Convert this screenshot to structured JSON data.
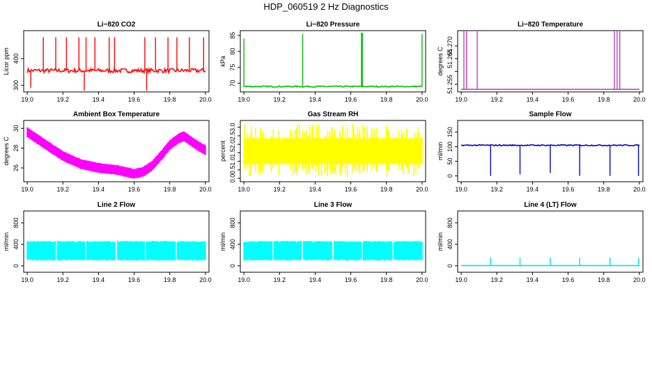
{
  "title": "HDP_060519  2 Hz Diagnostics",
  "chart_data": [
    {
      "id": "co2",
      "type": "line",
      "title": "Li−820 CO2",
      "ylabel": "Licor ppm",
      "color": "#ff0000",
      "xlim": [
        18.98,
        20.02
      ],
      "ylim": [
        275,
        505
      ],
      "xticks": [
        19.0,
        19.2,
        19.4,
        19.6,
        19.8,
        20.0
      ],
      "yticks": [
        300,
        400
      ],
      "x": [
        19.0,
        20.0
      ],
      "baseline": 355,
      "noise": 8,
      "spikes": [
        {
          "x": 19.02,
          "y": 290
        },
        {
          "x": 19.09,
          "y": 480
        },
        {
          "x": 19.16,
          "y": 480
        },
        {
          "x": 19.22,
          "y": 480
        },
        {
          "x": 19.29,
          "y": 480
        },
        {
          "x": 19.32,
          "y": 280
        },
        {
          "x": 19.33,
          "y": 480
        },
        {
          "x": 19.38,
          "y": 480
        },
        {
          "x": 19.46,
          "y": 480
        },
        {
          "x": 19.49,
          "y": 480
        },
        {
          "x": 19.66,
          "y": 480
        },
        {
          "x": 19.67,
          "y": 280
        },
        {
          "x": 19.72,
          "y": 480
        },
        {
          "x": 19.79,
          "y": 480
        },
        {
          "x": 19.84,
          "y": 480
        },
        {
          "x": 19.91,
          "y": 480
        },
        {
          "x": 19.99,
          "y": 480
        }
      ]
    },
    {
      "id": "pressure",
      "type": "line",
      "title": "Li−820 Pressure",
      "ylabel": "kPa",
      "color": "#00c000",
      "xlim": [
        18.98,
        20.02
      ],
      "ylim": [
        67.3,
        86.5
      ],
      "xticks": [
        19.0,
        19.2,
        19.4,
        19.6,
        19.8,
        20.0
      ],
      "yticks": [
        70,
        75,
        80,
        85
      ],
      "x": [
        19.0,
        20.0
      ],
      "baseline": 69,
      "noise": 0.2,
      "spikes": [
        {
          "x": 19.0,
          "y": 84
        },
        {
          "x": 19.33,
          "y": 85.5
        },
        {
          "x": 19.66,
          "y": 85.8
        },
        {
          "x": 19.665,
          "y": 85.8
        },
        {
          "x": 20.0,
          "y": 85.5
        }
      ]
    },
    {
      "id": "licor-temp",
      "type": "line",
      "title": "Li−820 Temperature",
      "ylabel": "degrees C",
      "color": "#c040c0",
      "xlim": [
        18.98,
        20.02
      ],
      "ylim": [
        51.252,
        51.276
      ],
      "xticks": [
        19.0,
        19.2,
        19.4,
        19.6,
        19.8,
        20.0
      ],
      "yticks": [
        51.255,
        51.26,
        51.265,
        51.27
      ],
      "ytick_labels": [
        "51.255",
        "",
        "51.265",
        "51.270"
      ],
      "x": [
        19.0,
        20.0
      ],
      "baseline": 51.253,
      "noise": 0,
      "spikes": [
        {
          "x": 19.015,
          "y": 51.276
        },
        {
          "x": 19.03,
          "y": 51.276
        },
        {
          "x": 19.09,
          "y": 51.276
        },
        {
          "x": 19.86,
          "y": 51.276
        },
        {
          "x": 19.875,
          "y": 51.276
        },
        {
          "x": 19.89,
          "y": 51.276
        }
      ]
    },
    {
      "id": "box-temp",
      "type": "band",
      "title": "Ambient Box Temperature",
      "ylabel": "degrees C",
      "color": "#ff00ff",
      "xlim": [
        18.98,
        20.02
      ],
      "ylim": [
        24.6,
        30.8
      ],
      "xticks": [
        19.0,
        19.2,
        19.4,
        19.6,
        19.8,
        20.0
      ],
      "yticks": [
        26,
        28,
        30
      ],
      "x": [
        19.0,
        19.1,
        19.2,
        19.3,
        19.4,
        19.5,
        19.55,
        19.6,
        19.65,
        19.7,
        19.75,
        19.8,
        19.85,
        19.88,
        19.92,
        19.96,
        20.0
      ],
      "values": [
        29.6,
        28.4,
        27.2,
        26.4,
        26.0,
        25.8,
        25.6,
        25.4,
        25.6,
        26.2,
        27.2,
        28.3,
        29.0,
        29.2,
        28.7,
        28.2,
        27.8
      ],
      "band": 0.45
    },
    {
      "id": "rh",
      "type": "band",
      "title": "Gas Stream RH",
      "ylabel": "percent",
      "color": "#ffff00",
      "xlim": [
        18.98,
        20.02
      ],
      "ylim": [
        -0.2,
        3.4
      ],
      "xticks": [
        19.0,
        19.2,
        19.4,
        19.6,
        19.8,
        20.0
      ],
      "yticks": [
        0.0,
        0.5,
        1.0,
        1.5,
        2.0,
        2.5,
        3.0
      ],
      "ytick_labels": [
        "0.0",
        "0.5",
        "1.0",
        "1.5",
        "2.0",
        "2.5",
        "3.0"
      ],
      "x": [
        19.0,
        20.0
      ],
      "values": [
        1.6,
        1.6
      ],
      "band": 0.7,
      "spread": [
        0.1,
        3.2
      ]
    },
    {
      "id": "sample-flow",
      "type": "line",
      "title": "Sample Flow",
      "ylabel": "ml/min",
      "color": "#0000cc",
      "xlim": [
        18.98,
        20.02
      ],
      "ylim": [
        -20,
        190
      ],
      "xticks": [
        19.0,
        19.2,
        19.4,
        19.6,
        19.8,
        20.0
      ],
      "yticks": [
        0,
        50,
        100,
        150
      ],
      "x": [
        19.0,
        20.0
      ],
      "baseline": 105,
      "noise": 2,
      "spikes": [
        {
          "x": 19.165,
          "y": 0
        },
        {
          "x": 19.33,
          "y": 5
        },
        {
          "x": 19.5,
          "y": 10
        },
        {
          "x": 19.665,
          "y": 0
        },
        {
          "x": 19.835,
          "y": 0
        },
        {
          "x": 19.995,
          "y": 0
        }
      ]
    },
    {
      "id": "line2",
      "type": "band",
      "title": "Line 2 Flow",
      "ylabel": "ml/min",
      "color": "#00ffff",
      "xlim": [
        18.98,
        20.02
      ],
      "ylim": [
        -120,
        1020
      ],
      "xticks": [
        19.0,
        19.2,
        19.4,
        19.6,
        19.8,
        20.0
      ],
      "yticks": [
        0,
        400,
        800
      ],
      "x": [
        19.0,
        20.0
      ],
      "values": [
        280,
        280
      ],
      "band": 160,
      "gaps": [
        19.165,
        19.33,
        19.5,
        19.665,
        19.835
      ]
    },
    {
      "id": "line3",
      "type": "band",
      "title": "Line 3 Flow",
      "ylabel": "ml/min",
      "color": "#00ffff",
      "xlim": [
        18.98,
        20.02
      ],
      "ylim": [
        -120,
        1020
      ],
      "xticks": [
        19.0,
        19.2,
        19.4,
        19.6,
        19.8,
        20.0
      ],
      "yticks": [
        0,
        400,
        800
      ],
      "x": [
        19.0,
        20.0
      ],
      "values": [
        280,
        280
      ],
      "band": 160,
      "gaps": [
        19.165,
        19.33,
        19.5,
        19.665,
        19.835
      ]
    },
    {
      "id": "line4",
      "type": "line",
      "title": "Line 4 (LT) Flow",
      "ylabel": "ml/min",
      "color": "#00e0e0",
      "xlim": [
        18.98,
        20.02
      ],
      "ylim": [
        -120,
        1020
      ],
      "xticks": [
        19.0,
        19.2,
        19.4,
        19.6,
        19.8,
        20.0
      ],
      "yticks": [
        0,
        400,
        800
      ],
      "x": [
        19.0,
        20.0
      ],
      "baseline": 5,
      "noise": 0,
      "spikes": [
        {
          "x": 19.165,
          "y": 150
        },
        {
          "x": 19.33,
          "y": 150
        },
        {
          "x": 19.5,
          "y": 150
        },
        {
          "x": 19.665,
          "y": 150
        },
        {
          "x": 19.835,
          "y": 150
        },
        {
          "x": 19.995,
          "y": 150
        }
      ]
    }
  ]
}
